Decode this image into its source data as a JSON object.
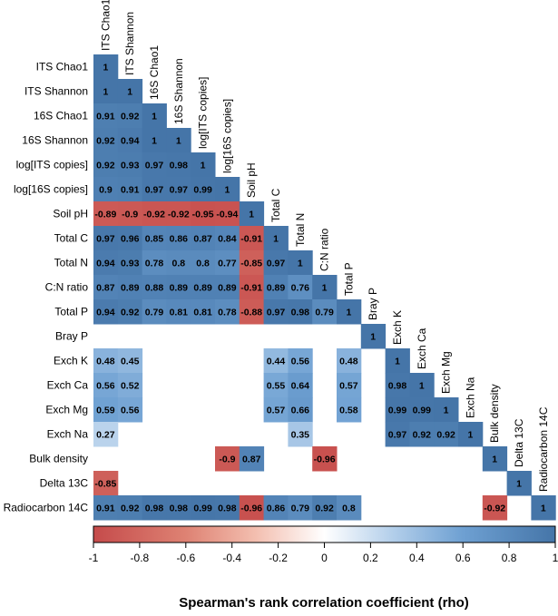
{
  "chart_data": {
    "type": "heatmap",
    "title": "",
    "colorbar_label": "Spearman's rank correlation coefficient (rho)",
    "colorbar_range": [
      -1,
      1
    ],
    "colorbar_ticks": [
      "-1",
      "-0.8",
      "-0.6",
      "-0.4",
      "-0.2",
      "0",
      "0.2",
      "0.4",
      "0.6",
      "0.8",
      "1"
    ],
    "colors": {
      "negative": "#B2182B",
      "neutral": "#FFFFFF",
      "positive": "#2F6BA5",
      "neg_end": "#C54B4B",
      "pos_end": "#4575A8"
    },
    "variables": [
      "ITS Chao1",
      "ITS Shannon",
      "16S Chao1",
      "16S Shannon",
      "log[ITS copies]",
      "log[16S copies]",
      "Soil pH",
      "Total C",
      "Total N",
      "C:N ratio",
      "Total P",
      "Bray P",
      "Exch K",
      "Exch Ca",
      "Exch Mg",
      "Exch Na",
      "Bulk density",
      "Delta 13C",
      "Radiocarbon 14C"
    ],
    "matrix_lower": [
      [
        1
      ],
      [
        1,
        1
      ],
      [
        0.91,
        0.92,
        1
      ],
      [
        0.92,
        0.94,
        1,
        1
      ],
      [
        0.92,
        0.93,
        0.97,
        0.98,
        1
      ],
      [
        0.9,
        0.91,
        0.97,
        0.97,
        0.99,
        1
      ],
      [
        -0.89,
        -0.9,
        -0.92,
        -0.92,
        -0.95,
        -0.94,
        1
      ],
      [
        0.97,
        0.96,
        0.85,
        0.86,
        0.87,
        0.84,
        -0.91,
        1
      ],
      [
        0.94,
        0.93,
        0.78,
        0.8,
        0.8,
        0.77,
        -0.85,
        0.97,
        1
      ],
      [
        0.87,
        0.89,
        0.88,
        0.89,
        0.89,
        0.89,
        -0.91,
        0.89,
        0.76,
        1
      ],
      [
        0.94,
        0.92,
        0.79,
        0.81,
        0.81,
        0.78,
        -0.88,
        0.97,
        0.98,
        0.79,
        1
      ],
      [
        null,
        null,
        null,
        null,
        null,
        null,
        null,
        null,
        null,
        null,
        null,
        1
      ],
      [
        0.48,
        0.45,
        null,
        null,
        null,
        null,
        null,
        0.44,
        0.56,
        null,
        0.48,
        null,
        1
      ],
      [
        0.56,
        0.52,
        null,
        null,
        null,
        null,
        null,
        0.55,
        0.64,
        null,
        0.57,
        null,
        0.98,
        1
      ],
      [
        0.59,
        0.56,
        null,
        null,
        null,
        null,
        null,
        0.57,
        0.66,
        null,
        0.58,
        null,
        0.99,
        0.99,
        1
      ],
      [
        0.27,
        null,
        null,
        null,
        null,
        null,
        null,
        null,
        0.35,
        null,
        null,
        null,
        0.97,
        0.92,
        0.92,
        1
      ],
      [
        null,
        null,
        null,
        null,
        null,
        -0.9,
        0.87,
        null,
        null,
        -0.96,
        null,
        null,
        null,
        null,
        null,
        null,
        1
      ],
      [
        -0.85,
        null,
        null,
        null,
        null,
        null,
        null,
        null,
        null,
        null,
        null,
        null,
        null,
        null,
        null,
        null,
        null,
        1
      ],
      [
        0.91,
        0.92,
        0.98,
        0.98,
        0.99,
        0.98,
        -0.96,
        0.86,
        0.79,
        0.92,
        0.8,
        null,
        null,
        null,
        null,
        null,
        -0.92,
        null,
        1
      ]
    ]
  }
}
